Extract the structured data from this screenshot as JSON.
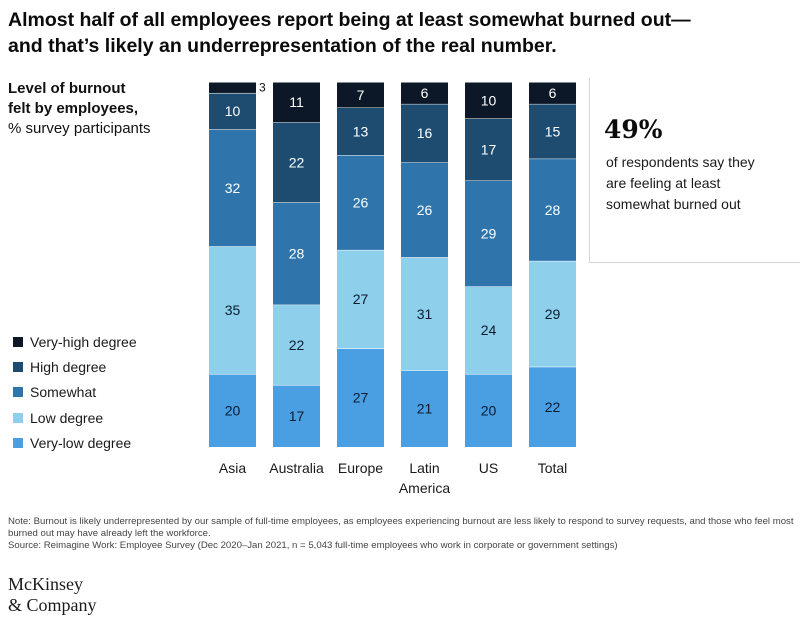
{
  "header": {
    "title_line1": "Almost half of all employees report being at least somewhat burned out—",
    "title_line2": "and that’s likely an underrepresentation of the real number."
  },
  "subhead": {
    "bold_line1": "Level of burnout",
    "bold_line2": "felt by employees,",
    "unit": "% survey participants"
  },
  "callout": {
    "value": "49%",
    "text": "of respondents say they are feeling at least somewhat burned out"
  },
  "footer": {
    "note": "Note: Burnout is likely underrepresented by our sample of full-time employees, as employees experiencing burnout are less likely to respond to survey requests, and those who feel most burned out may have already left the workforce.",
    "source": "Source: Reimagine Work: Employee Survey (Dec 2020–Jan 2021, n = 5,043 full-time employees who work in corporate or government settings)"
  },
  "logo": {
    "line1": "McKinsey",
    "line2": "& Company"
  },
  "chart_data": {
    "type": "bar",
    "stacked": true,
    "categories": [
      [
        "Asia"
      ],
      [
        "Australia"
      ],
      [
        "Europe"
      ],
      [
        "Latin",
        "America"
      ],
      [
        "US"
      ],
      [
        "Total"
      ]
    ],
    "series": [
      {
        "name": "Very-low degree",
        "color": "#4a9fe3",
        "label_color": "#0d1b2e",
        "values": [
          20,
          17,
          27,
          21,
          20,
          22
        ]
      },
      {
        "name": "Low degree",
        "color": "#8ecfec",
        "label_color": "#0d1b2e",
        "values": [
          35,
          22,
          27,
          31,
          24,
          29
        ]
      },
      {
        "name": "Somewhat",
        "color": "#2f74aa",
        "label_color": "#ffffff",
        "values": [
          32,
          28,
          26,
          26,
          29,
          28
        ]
      },
      {
        "name": "High degree",
        "color": "#1e4b70",
        "label_color": "#ffffff",
        "values": [
          10,
          22,
          13,
          16,
          17,
          15
        ]
      },
      {
        "name": "Very-high degree",
        "color": "#0c1827",
        "label_color": "#ffffff",
        "values": [
          3,
          11,
          7,
          6,
          10,
          6
        ]
      }
    ],
    "ylim": [
      0,
      100
    ],
    "legend_order": [
      "Very-high degree",
      "High degree",
      "Somewhat",
      "Low degree",
      "Very-low degree"
    ],
    "legend_position": "left",
    "grid": false
  }
}
